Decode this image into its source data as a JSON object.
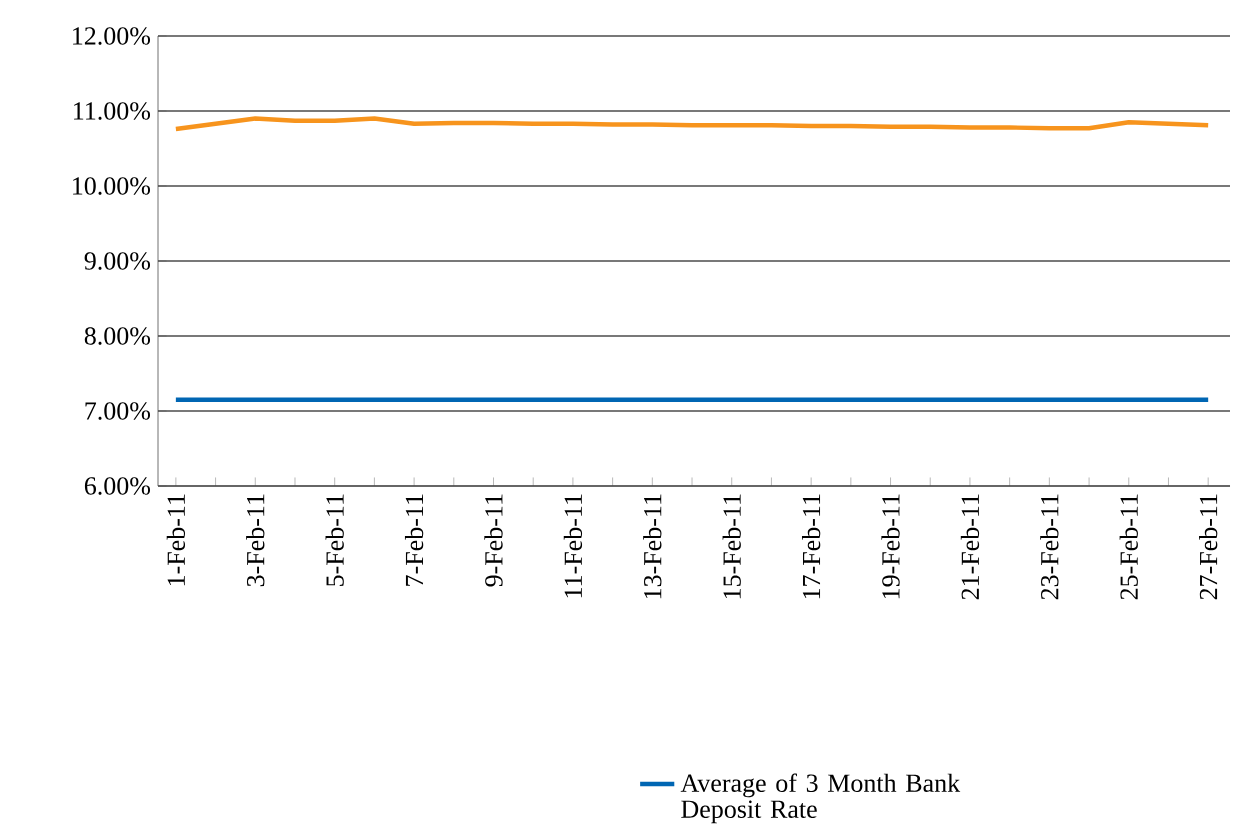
{
  "chart_data": {
    "type": "line",
    "categories": [
      "1-Feb-11",
      null,
      "3-Feb-11",
      null,
      "5-Feb-11",
      null,
      "7-Feb-11",
      null,
      "9-Feb-11",
      null,
      "11-Feb-11",
      null,
      "13-Feb-11",
      null,
      "15-Feb-11",
      null,
      "17-Feb-11",
      null,
      "19-Feb-11",
      null,
      "21-Feb-11",
      null,
      "23-Feb-11",
      null,
      "25-Feb-11",
      null,
      "27-Feb-11"
    ],
    "series": [
      {
        "color": "#f7941d",
        "values": [
          10.76,
          10.83,
          10.9,
          10.87,
          10.87,
          10.9,
          10.83,
          10.84,
          10.84,
          10.83,
          10.83,
          10.82,
          10.82,
          10.81,
          10.81,
          10.81,
          10.8,
          10.8,
          10.79,
          10.79,
          10.78,
          10.78,
          10.77,
          10.77,
          10.85,
          10.83,
          10.81
        ]
      },
      {
        "name": "Average of 3 Month Bank Deposit Rate",
        "color": "#0066b3",
        "values": [
          7.15,
          7.15,
          7.15,
          7.15,
          7.15,
          7.15,
          7.15,
          7.15,
          7.15,
          7.15,
          7.15,
          7.15,
          7.15,
          7.15,
          7.15,
          7.15,
          7.15,
          7.15,
          7.15,
          7.15,
          7.15,
          7.15,
          7.15,
          7.15,
          7.15,
          7.15,
          7.15
        ]
      }
    ],
    "ylim": [
      6,
      12
    ],
    "yticks": [
      {
        "value": 6,
        "label": "6.00%"
      },
      {
        "value": 7,
        "label": "7.00%"
      },
      {
        "value": 8,
        "label": "8.00%"
      },
      {
        "value": 9,
        "label": "9.00%"
      },
      {
        "value": 10,
        "label": "10.00%"
      },
      {
        "value": 11,
        "label": "11.00%"
      },
      {
        "value": 12,
        "label": "12.00%"
      }
    ],
    "grid": "y",
    "legend": "bottom"
  }
}
